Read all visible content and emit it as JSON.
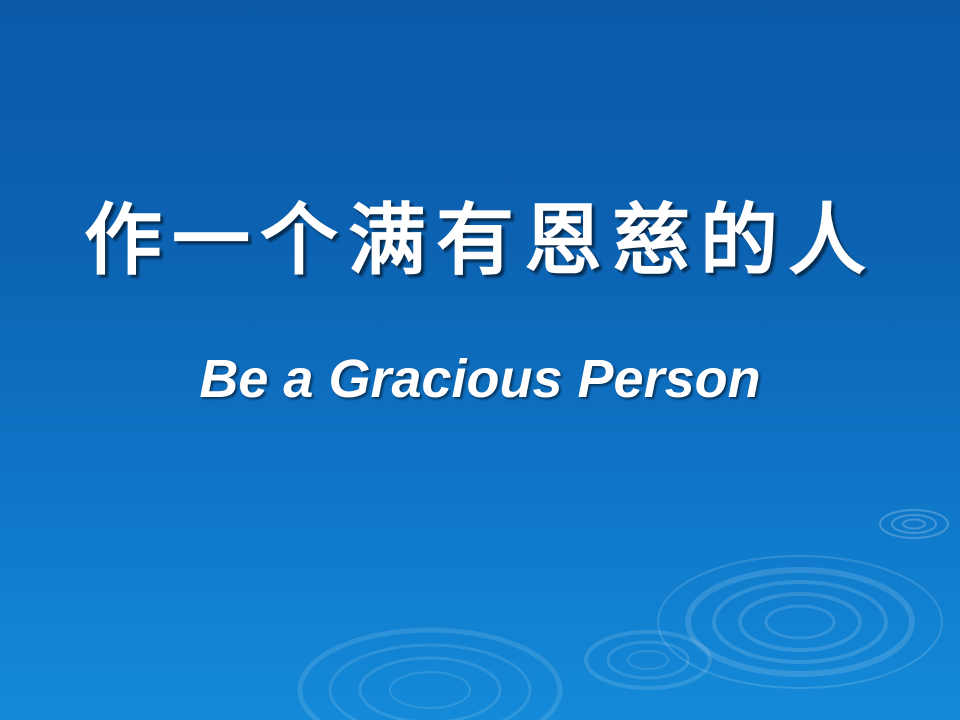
{
  "slide": {
    "title_zh": "作一个满有恩慈的人",
    "title_en": "Be a Gracious Person"
  },
  "colors": {
    "background_top": "#0a5aa8",
    "background_bottom": "#148ad8",
    "text": "#ffffff"
  },
  "decoration": {
    "icon": "water-ripple-icon"
  }
}
